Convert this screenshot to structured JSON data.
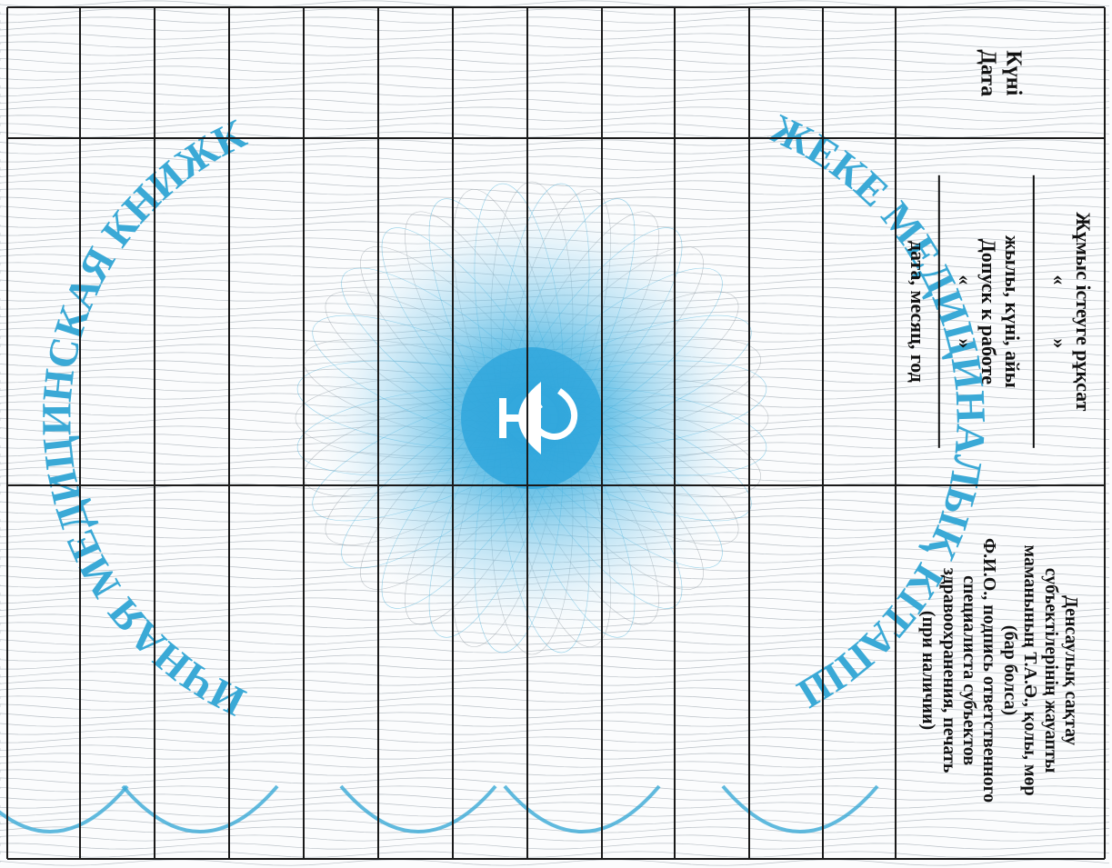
{
  "header": {
    "date_label": {
      "kk": "Күні",
      "ru": "Дата"
    },
    "permission": {
      "kk_title": "Жұмыс істеуге рұқсат",
      "quote_open": "«",
      "quote_close": "»",
      "kk_subtitle": "жылы, күні, айы",
      "ru_title": "Допуск к работе",
      "ru_subtitle": "дата, месяц, год"
    },
    "specialist": {
      "line1": "Денсаулық сақтау",
      "line2": "субъектілерінің жауапты",
      "line3": "маманының Т.А.Ә., қолы, мөр",
      "line4": "(бар болса)",
      "line5": "Ф.И.О., подпись ответственного",
      "line6": "специалиста субъектов",
      "line7": "здравоохранения, печать",
      "line8": "(при наличии)"
    }
  },
  "watermark": {
    "kk_arc": "ЖЕКЕ МЕДИЦИНАЛЫҚ КІТАПША",
    "ru_arc": "ЛИЧНАЯ МЕДИЦИНСКАЯ КНИЖКА"
  },
  "colors": {
    "accent": "#3aa9d6",
    "rule": "#1a1a1a",
    "guilloche": "#9aa3ab"
  },
  "table": {
    "columns": 4,
    "rows": 12
  }
}
